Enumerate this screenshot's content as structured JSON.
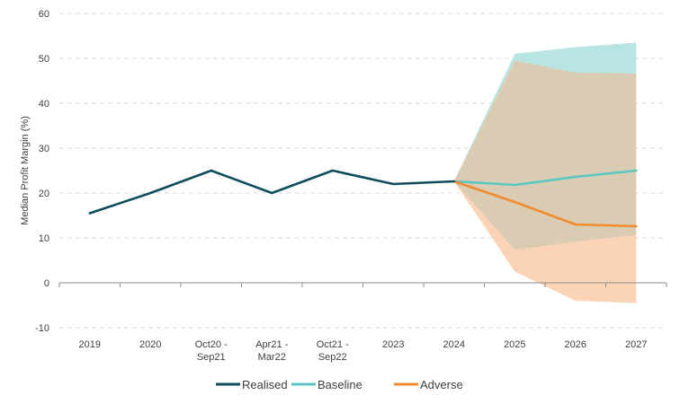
{
  "chart_data": {
    "type": "line",
    "title": "",
    "xlabel": "",
    "ylabel": "Median Profit Margin (%)",
    "ylim": [
      -10,
      60
    ],
    "yticks": [
      -10,
      0,
      10,
      20,
      30,
      40,
      50,
      60
    ],
    "grid": true,
    "legend_position": "bottom",
    "categories": [
      [
        "2019"
      ],
      [
        "2020"
      ],
      [
        "Oct20 -",
        "Sep21"
      ],
      [
        "Apr21 -",
        "Mar22"
      ],
      [
        "Oct21 -",
        "Sep22"
      ],
      [
        "2023"
      ],
      [
        "2024"
      ],
      [
        "2025"
      ],
      [
        "2026"
      ],
      [
        "2027"
      ]
    ],
    "series": [
      {
        "name": "Realised",
        "color": "#0f4c5c",
        "values": [
          15.5,
          20,
          25,
          20,
          25,
          22,
          22.6,
          null,
          null,
          null
        ]
      },
      {
        "name": "Baseline",
        "color": "#5bc6c1",
        "values": [
          null,
          null,
          null,
          null,
          null,
          null,
          22.6,
          21.8,
          23.6,
          25.0
        ]
      },
      {
        "name": "Adverse",
        "color": "#f28a2e",
        "values": [
          null,
          null,
          null,
          null,
          null,
          null,
          22.6,
          18.0,
          13.0,
          12.6
        ]
      }
    ],
    "bands": [
      {
        "name": "Baseline range",
        "color": "#b8e4e3",
        "start_index": 6,
        "lower": [
          22.6,
          7.3,
          9.2,
          10.6
        ],
        "upper": [
          22.6,
          51.0,
          52.5,
          53.5
        ]
      },
      {
        "name": "Adverse range",
        "color": "#fbd4b8",
        "start_index": 6,
        "lower": [
          22.6,
          2.5,
          -4.0,
          -4.5
        ],
        "upper": [
          22.6,
          49.5,
          46.8,
          46.6
        ]
      }
    ],
    "overlap_color": "#d9ccb2"
  }
}
